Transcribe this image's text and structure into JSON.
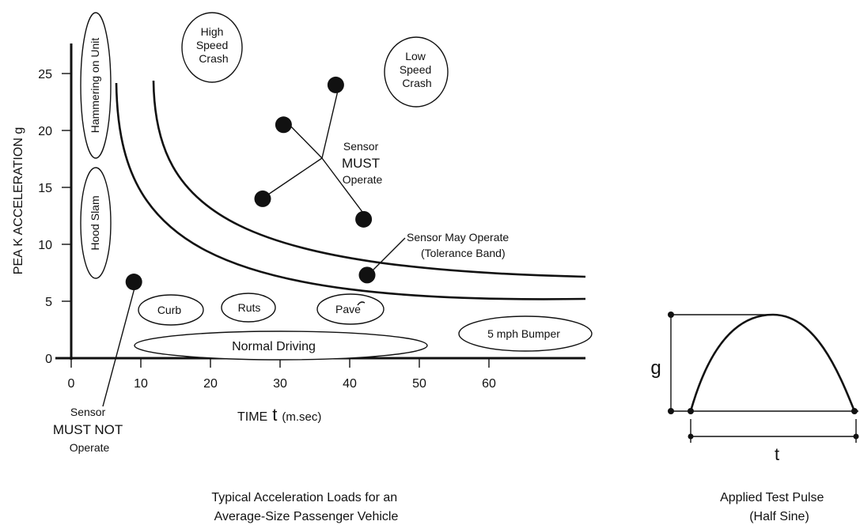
{
  "chart_data": {
    "type": "scatter",
    "ylabel": "PEA K ACCELERATION g",
    "xlabel": "TIME",
    "xlabel_var": "t",
    "xlabel_unit": "(m.sec)",
    "xticks": [
      "0",
      "10",
      "20",
      "30",
      "40",
      "50",
      "60"
    ],
    "yticks": [
      "0",
      "5",
      "10",
      "15",
      "20",
      "25"
    ],
    "xlim": [
      0,
      72
    ],
    "ylim": [
      0,
      27
    ],
    "points": [
      {
        "x": 9,
        "y": 6.7
      },
      {
        "x": 27.5,
        "y": 14
      },
      {
        "x": 30.5,
        "y": 20.5
      },
      {
        "x": 38,
        "y": 24
      },
      {
        "x": 42,
        "y": 12.2
      },
      {
        "x": 42.5,
        "y": 7.3
      }
    ],
    "regions": [
      {
        "label": "Hammering on Unit",
        "vertical": true
      },
      {
        "label": "Hood Slam",
        "vertical": true
      },
      {
        "label_lines": [
          "High",
          "Speed",
          "Crash"
        ]
      },
      {
        "label_lines": [
          "Low",
          "Speed",
          "Crash"
        ]
      },
      {
        "label": "Curb"
      },
      {
        "label": "Ruts"
      },
      {
        "label": "Pave"
      },
      {
        "label": "Normal Driving"
      },
      {
        "label": "5 mph Bumper"
      }
    ],
    "annotations": {
      "must_operate": [
        "Sensor",
        "MUST",
        "Operate"
      ],
      "may_operate": [
        "Sensor May Operate",
        "(Tolerance Band)"
      ],
      "must_not": [
        "Sensor",
        "MUST NOT",
        "Operate"
      ]
    },
    "caption": [
      "Typical Acceleration Loads for an",
      "Average-Size Passenger Vehicle"
    ]
  },
  "pulse": {
    "g_label": "g",
    "t_label": "t",
    "caption": [
      "Applied Test Pulse",
      "(Half Sine)"
    ]
  }
}
